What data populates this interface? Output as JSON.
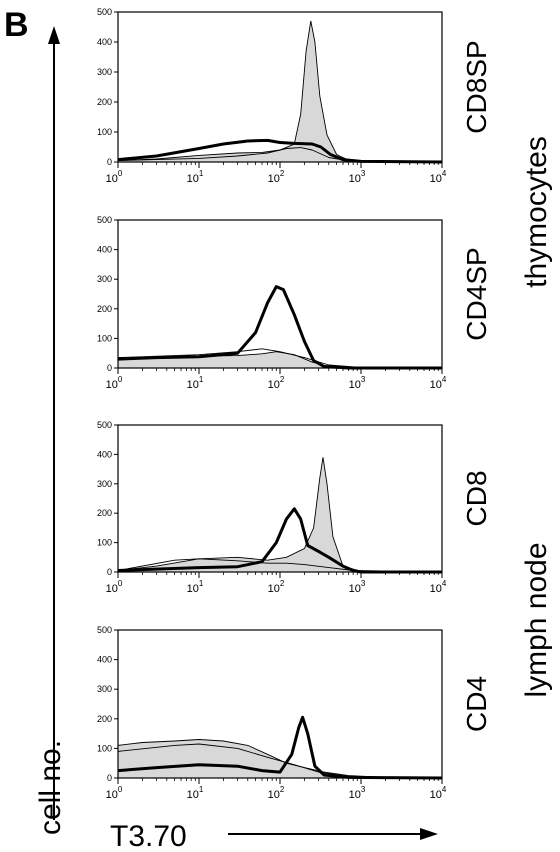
{
  "panel_label": "B",
  "y_axis_label": "cell no.",
  "x_axis_label": "T3.70",
  "group_labels": [
    "thymocytes",
    "lymph node"
  ],
  "colors": {
    "shaded_fill": "#d8d8d8",
    "line": "#000000"
  },
  "chart_data": [
    {
      "type": "area",
      "title": "CD8SP",
      "xscale": "log",
      "xlim": [
        1,
        10000
      ],
      "ylim": [
        0,
        500
      ],
      "yticks": [
        0,
        100,
        200,
        300,
        400,
        500
      ],
      "xticks": [
        1,
        10,
        100,
        1000,
        10000
      ],
      "xtick_labels": [
        [
          "10",
          "0"
        ],
        [
          "10",
          "1"
        ],
        [
          "10",
          "2"
        ],
        [
          "10",
          "3"
        ],
        [
          "10",
          "4"
        ]
      ],
      "grid": false,
      "series": [
        {
          "style": "filled",
          "points": [
            [
              1,
              5
            ],
            [
              3,
              10
            ],
            [
              10,
              22
            ],
            [
              30,
              30
            ],
            [
              60,
              32
            ],
            [
              100,
              40
            ],
            [
              150,
              60
            ],
            [
              180,
              160
            ],
            [
              210,
              370
            ],
            [
              240,
              470
            ],
            [
              270,
              400
            ],
            [
              310,
              220
            ],
            [
              380,
              90
            ],
            [
              500,
              25
            ],
            [
              700,
              6
            ],
            [
              1000,
              2
            ],
            [
              10000,
              0
            ]
          ]
        },
        {
          "style": "thick",
          "points": [
            [
              1,
              8
            ],
            [
              3,
              20
            ],
            [
              10,
              45
            ],
            [
              20,
              60
            ],
            [
              40,
              70
            ],
            [
              70,
              72
            ],
            [
              100,
              65
            ],
            [
              150,
              62
            ],
            [
              250,
              60
            ],
            [
              320,
              50
            ],
            [
              420,
              25
            ],
            [
              600,
              8
            ],
            [
              1000,
              2
            ],
            [
              10000,
              0
            ]
          ]
        },
        {
          "style": "thin",
          "points": [
            [
              1,
              5
            ],
            [
              10,
              12
            ],
            [
              30,
              20
            ],
            [
              70,
              30
            ],
            [
              120,
              45
            ],
            [
              180,
              48
            ],
            [
              250,
              40
            ],
            [
              400,
              15
            ],
            [
              700,
              4
            ],
            [
              10000,
              0
            ]
          ]
        }
      ]
    },
    {
      "type": "area",
      "title": "CD4SP",
      "xscale": "log",
      "xlim": [
        1,
        10000
      ],
      "ylim": [
        0,
        500
      ],
      "yticks": [
        0,
        100,
        200,
        300,
        400,
        500
      ],
      "xticks": [
        1,
        10,
        100,
        1000,
        10000
      ],
      "xtick_labels": [
        [
          "10",
          "0"
        ],
        [
          "10",
          "1"
        ],
        [
          "10",
          "2"
        ],
        [
          "10",
          "3"
        ],
        [
          "10",
          "4"
        ]
      ],
      "grid": false,
      "series": [
        {
          "style": "filled",
          "points": [
            [
              1,
              35
            ],
            [
              3,
              38
            ],
            [
              10,
              40
            ],
            [
              30,
              42
            ],
            [
              60,
              48
            ],
            [
              90,
              55
            ],
            [
              150,
              45
            ],
            [
              250,
              20
            ],
            [
              400,
              5
            ],
            [
              1000,
              0
            ],
            [
              10000,
              0
            ]
          ]
        },
        {
          "style": "thick",
          "points": [
            [
              1,
              30
            ],
            [
              3,
              35
            ],
            [
              10,
              38
            ],
            [
              30,
              50
            ],
            [
              50,
              120
            ],
            [
              70,
              220
            ],
            [
              90,
              275
            ],
            [
              110,
              265
            ],
            [
              150,
              180
            ],
            [
              200,
              90
            ],
            [
              260,
              25
            ],
            [
              350,
              5
            ],
            [
              700,
              0
            ],
            [
              10000,
              0
            ]
          ]
        },
        {
          "style": "thin",
          "points": [
            [
              1,
              35
            ],
            [
              10,
              45
            ],
            [
              30,
              55
            ],
            [
              60,
              65
            ],
            [
              100,
              55
            ],
            [
              200,
              35
            ],
            [
              400,
              10
            ],
            [
              1000,
              2
            ],
            [
              10000,
              0
            ]
          ]
        }
      ]
    },
    {
      "type": "area",
      "title": "CD8",
      "xscale": "log",
      "xlim": [
        1,
        10000
      ],
      "ylim": [
        0,
        500
      ],
      "yticks": [
        0,
        100,
        200,
        300,
        400,
        500
      ],
      "xticks": [
        1,
        10,
        100,
        1000,
        10000
      ],
      "xtick_labels": [
        [
          "10",
          "0"
        ],
        [
          "10",
          "1"
        ],
        [
          "10",
          "2"
        ],
        [
          "10",
          "3"
        ],
        [
          "10",
          "4"
        ]
      ],
      "grid": false,
      "series": [
        {
          "style": "filled",
          "points": [
            [
              1,
              5
            ],
            [
              3,
              20
            ],
            [
              10,
              45
            ],
            [
              30,
              50
            ],
            [
              70,
              40
            ],
            [
              120,
              50
            ],
            [
              200,
              80
            ],
            [
              260,
              150
            ],
            [
              310,
              320
            ],
            [
              340,
              390
            ],
            [
              380,
              300
            ],
            [
              450,
              120
            ],
            [
              600,
              20
            ],
            [
              1000,
              2
            ],
            [
              10000,
              0
            ]
          ]
        },
        {
          "style": "thick",
          "points": [
            [
              1,
              5
            ],
            [
              10,
              15
            ],
            [
              30,
              18
            ],
            [
              60,
              35
            ],
            [
              90,
              100
            ],
            [
              120,
              180
            ],
            [
              150,
              215
            ],
            [
              180,
              180
            ],
            [
              220,
              90
            ],
            [
              300,
              70
            ],
            [
              400,
              50
            ],
            [
              600,
              20
            ],
            [
              800,
              5
            ],
            [
              1000,
              0
            ],
            [
              10000,
              0
            ]
          ]
        },
        {
          "style": "thin",
          "points": [
            [
              1,
              5
            ],
            [
              5,
              40
            ],
            [
              10,
              45
            ],
            [
              30,
              38
            ],
            [
              70,
              30
            ],
            [
              120,
              30
            ],
            [
              200,
              25
            ],
            [
              400,
              15
            ],
            [
              800,
              5
            ],
            [
              10000,
              0
            ]
          ]
        }
      ]
    },
    {
      "type": "area",
      "title": "CD4",
      "xscale": "log",
      "xlim": [
        1,
        10000
      ],
      "ylim": [
        0,
        500
      ],
      "yticks": [
        0,
        100,
        200,
        300,
        400,
        500
      ],
      "xticks": [
        1,
        10,
        100,
        1000,
        10000
      ],
      "xtick_labels": [
        [
          "10",
          "0"
        ],
        [
          "10",
          "1"
        ],
        [
          "10",
          "2"
        ],
        [
          "10",
          "3"
        ],
        [
          "10",
          "4"
        ]
      ],
      "grid": false,
      "series": [
        {
          "style": "filled",
          "points": [
            [
              1,
              110
            ],
            [
              2,
              120
            ],
            [
              5,
              125
            ],
            [
              10,
              130
            ],
            [
              20,
              125
            ],
            [
              40,
              110
            ],
            [
              70,
              80
            ],
            [
              120,
              50
            ],
            [
              200,
              35
            ],
            [
              350,
              20
            ],
            [
              700,
              8
            ],
            [
              2000,
              2
            ],
            [
              10000,
              0
            ]
          ]
        },
        {
          "style": "thick",
          "points": [
            [
              1,
              25
            ],
            [
              3,
              35
            ],
            [
              10,
              45
            ],
            [
              30,
              40
            ],
            [
              60,
              25
            ],
            [
              100,
              20
            ],
            [
              140,
              80
            ],
            [
              170,
              170
            ],
            [
              190,
              205
            ],
            [
              220,
              150
            ],
            [
              270,
              40
            ],
            [
              350,
              10
            ],
            [
              700,
              2
            ],
            [
              10000,
              0
            ]
          ]
        },
        {
          "style": "thin",
          "points": [
            [
              1,
              90
            ],
            [
              5,
              110
            ],
            [
              10,
              115
            ],
            [
              30,
              100
            ],
            [
              70,
              70
            ],
            [
              150,
              45
            ],
            [
              300,
              20
            ],
            [
              700,
              5
            ],
            [
              10000,
              0
            ]
          ]
        }
      ]
    }
  ]
}
